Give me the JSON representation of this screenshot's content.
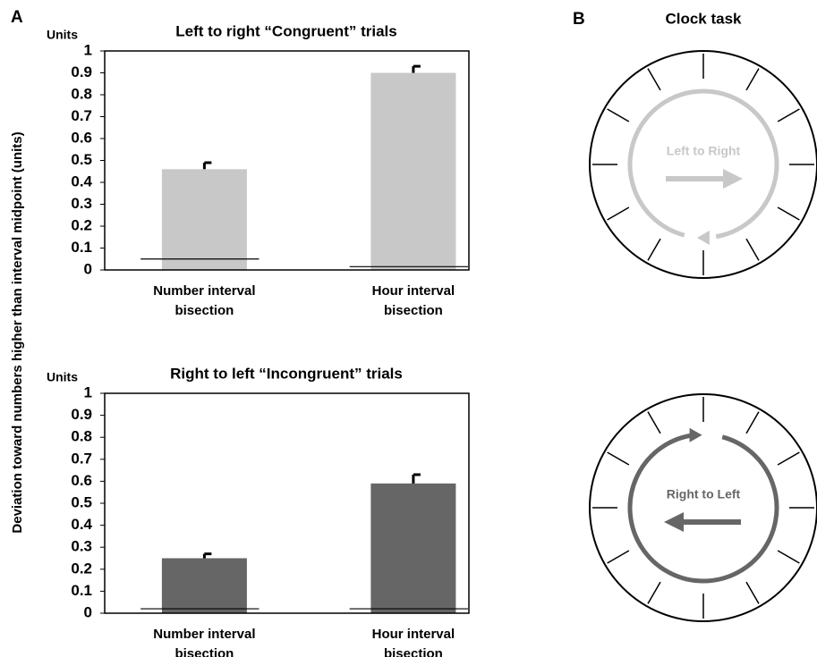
{
  "panel_labels": [
    "A",
    "B"
  ],
  "y_axis_label": "Deviation toward numbers higher than interval midpoint (units)",
  "clock_title": "Clock task",
  "clocks": [
    {
      "label": "Left to Right"
    },
    {
      "label": "Right to Left"
    }
  ],
  "chart_data": [
    {
      "type": "bar",
      "title": "Left to right “Congruent” trials",
      "unit_label": "Units",
      "categories": [
        "Number interval bisection",
        "Hour interval bisection"
      ],
      "values": [
        0.46,
        0.9
      ],
      "errors": [
        0.03,
        0.03
      ],
      "baselines": [
        0.05,
        0.015
      ],
      "color": "#c8c8c8",
      "ylim": [
        0,
        1
      ],
      "yticks": [
        0,
        0.1,
        0.2,
        0.3,
        0.4,
        0.5,
        0.6,
        0.7,
        0.8,
        0.9,
        1
      ]
    },
    {
      "type": "bar",
      "title": "Right to left “Incongruent” trials",
      "unit_label": "Units",
      "categories": [
        "Number interval bisection",
        "Hour interval bisection"
      ],
      "values": [
        0.25,
        0.59
      ],
      "errors": [
        0.02,
        0.04
      ],
      "baselines": [
        0.02,
        0.02
      ],
      "color": "#666666",
      "ylim": [
        0,
        1
      ],
      "yticks": [
        0,
        0.1,
        0.2,
        0.3,
        0.4,
        0.5,
        0.6,
        0.7,
        0.8,
        0.9,
        1
      ]
    }
  ]
}
